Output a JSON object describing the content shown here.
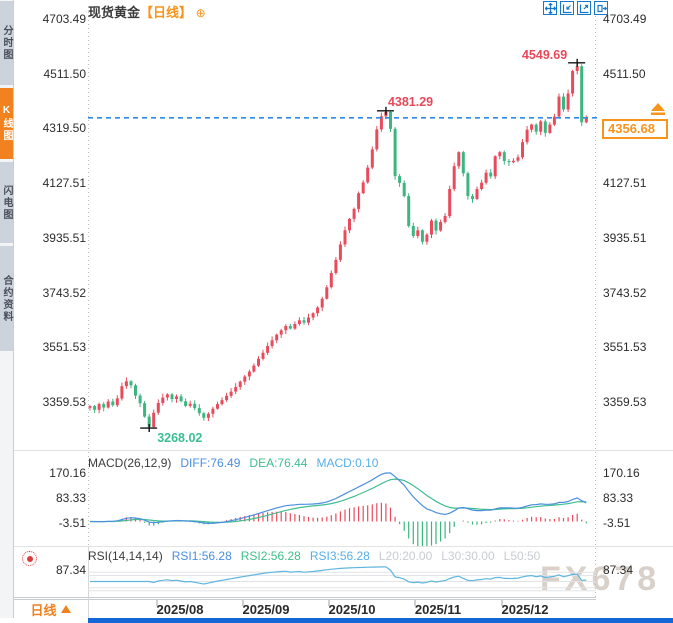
{
  "header": {
    "title": "现货黄金",
    "timeframe": "【日线】",
    "add_icon": "⊕"
  },
  "toolbar": {
    "icons": [
      "pan-icon",
      "compress-icon",
      "expand-icon",
      "exit-icon"
    ]
  },
  "sidebar": {
    "items": [
      {
        "label": "分时图",
        "active": false
      },
      {
        "label": "K线图",
        "active": true
      },
      {
        "label": "闪电图",
        "active": false
      },
      {
        "label": "合约资料",
        "active": false
      }
    ]
  },
  "bottom": {
    "period_label": "日线",
    "x_labels": [
      "2025/08",
      "2025/09",
      "2025/10",
      "2025/11",
      "2025/12"
    ]
  },
  "watermark": "FX678",
  "colors": {
    "up": "#e84b5c",
    "down": "#3cb57f",
    "diff_line": "#4a8fe0",
    "dea_line": "#40bd8f",
    "macd_value": "#54b0e8",
    "rsi_line": "#5fb6e0",
    "accent_orange": "#f7941d",
    "dashed_line": "#2e8ae6",
    "toolbar_blue": "#1777c8",
    "bottom_bar": "#1467d6",
    "annotation_red": "#e8495a",
    "annotation_green": "#3bbd94",
    "level_gray": "#c9ccd1"
  },
  "chart_data": {
    "type": "candlestick",
    "instrument": "现货黄金",
    "period": "日线",
    "y_ticks": [
      "4703.49",
      "4511.50",
      "4319.50",
      "4127.51",
      "3935.51",
      "3743.52",
      "3551.53",
      "3359.53"
    ],
    "x_labels": [
      "2025/08",
      "2025/09",
      "2025/10",
      "2025/11",
      "2025/12"
    ],
    "open_rule": "previous_close",
    "closes": [
      3345,
      3332,
      3352,
      3340,
      3361,
      3348,
      3372,
      3415,
      3432,
      3418,
      3382,
      3355,
      3308,
      3272,
      3322,
      3356,
      3375,
      3386,
      3370,
      3379,
      3362,
      3346,
      3353,
      3338,
      3320,
      3304,
      3318,
      3336,
      3352,
      3366,
      3381,
      3396,
      3412,
      3431,
      3449,
      3466,
      3487,
      3511,
      3532,
      3556,
      3576,
      3596,
      3611,
      3626,
      3617,
      3633,
      3646,
      3638,
      3656,
      3671,
      3691,
      3722,
      3762,
      3812,
      3858,
      3912,
      3962,
      4002,
      4037,
      4092,
      4130,
      4182,
      4246,
      4316,
      4362,
      4377,
      4318,
      4152,
      4128,
      4082,
      3977,
      3942,
      3962,
      3922,
      3947,
      3996,
      3961,
      3991,
      4012,
      4107,
      4187,
      4236,
      4162,
      4082,
      4072,
      4107,
      4129,
      4164,
      4151,
      4222,
      4236,
      4205,
      4201,
      4206,
      4218,
      4271,
      4315,
      4333,
      4308,
      4344,
      4304,
      4333,
      4361,
      4431,
      4386,
      4442,
      4521,
      4538,
      4341,
      4356.68
    ],
    "annotations": {
      "high": {
        "label": "4549.69",
        "value": 4549.69,
        "index": 107
      },
      "swing_high": {
        "label": "4381.29",
        "value": 4381.29,
        "index": 65
      },
      "low": {
        "label": "3268.02",
        "value": 3268.02,
        "index": 13
      },
      "last_price": {
        "label": "4356.68",
        "value": 4356.68
      }
    },
    "macd": {
      "header": "MACD(26,12,9)",
      "params": [
        26,
        12,
        9
      ],
      "diff_label": "DIFF:76.49",
      "dea_label": "DEA:76.44",
      "macd_label": "MACD:0.10",
      "diff": 76.49,
      "dea": 76.44,
      "macd": 0.1,
      "y_ticks": [
        "170.16",
        "83.33",
        "-3.51"
      ]
    },
    "rsi": {
      "header": "RSI(14,14,14)",
      "params": [
        14,
        14,
        14
      ],
      "rsi1_label": "RSI1:56.28",
      "rsi2_label": "RSI2:56.28",
      "rsi3_label": "RSI3:56.28",
      "l20_label": "L20:20.00",
      "l30_label": "L30:30.00",
      "l50_label": "L50:50",
      "rsi1": 56.28,
      "rsi2": 56.28,
      "rsi3": 56.28,
      "levels": [
        80,
        70,
        50,
        30,
        20
      ],
      "y_tick": "87.34"
    }
  }
}
